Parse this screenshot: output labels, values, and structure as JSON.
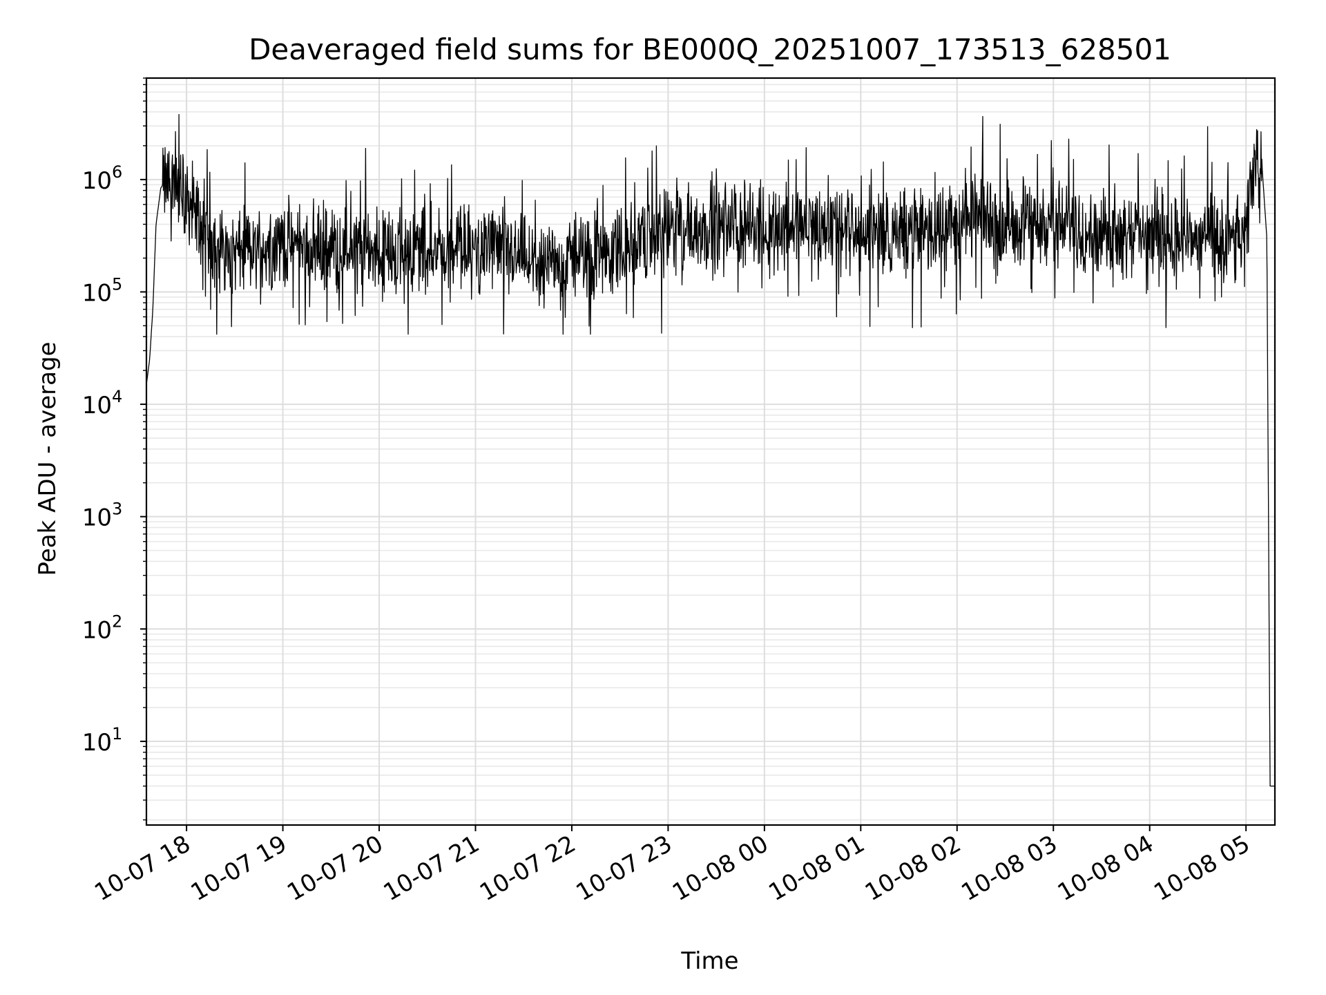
{
  "chart_data": {
    "type": "line",
    "title": "Deaveraged field sums for BE000Q_20251007_173513_628501",
    "xlabel": "Time",
    "ylabel": "Peak ADU - average",
    "y_scale": "log",
    "ylim": [
      1.8,
      8000000
    ],
    "xlim": [
      "2025-10-07 17:35",
      "2025-10-08 05:18"
    ],
    "grid": "major and minor, light gray",
    "line_color": "#000000",
    "x_ticks": [
      "10-07 18",
      "10-07 19",
      "10-07 20",
      "10-07 21",
      "10-07 22",
      "10-07 23",
      "10-08 00",
      "10-08 01",
      "10-08 02",
      "10-08 03",
      "10-08 04",
      "10-08 05"
    ],
    "y_ticks": [
      {
        "base": "10",
        "exp": "1"
      },
      {
        "base": "10",
        "exp": "2"
      },
      {
        "base": "10",
        "exp": "3"
      },
      {
        "base": "10",
        "exp": "4"
      },
      {
        "base": "10",
        "exp": "5"
      },
      {
        "base": "10",
        "exp": "6"
      }
    ],
    "series": [
      {
        "x": [
          "2025-10-07 17:35",
          "2025-10-07 17:37",
          "2025-10-07 17:39",
          "2025-10-07 17:41",
          "2025-10-07 17:44",
          "2025-10-07 17:50",
          "2025-10-07 17:55",
          "2025-10-07 18:00",
          "2025-10-07 18:03",
          "2025-10-07 18:10",
          "2025-10-07 18:20",
          "2025-10-07 18:30",
          "2025-10-07 19:00",
          "2025-10-07 19:30",
          "2025-10-07 20:00",
          "2025-10-07 20:30",
          "2025-10-07 21:00",
          "2025-10-07 21:30",
          "2025-10-07 21:45",
          "2025-10-07 22:00",
          "2025-10-07 22:30",
          "2025-10-07 23:00",
          "2025-10-07 23:30",
          "2025-10-08 00:00",
          "2025-10-08 00:30",
          "2025-10-08 01:00",
          "2025-10-08 01:30",
          "2025-10-08 02:00",
          "2025-10-08 02:30",
          "2025-10-08 03:00",
          "2025-10-08 03:30",
          "2025-10-08 04:00",
          "2025-10-08 04:30",
          "2025-10-08 05:00",
          "2025-10-08 05:05",
          "2025-10-08 05:10",
          "2025-10-08 05:13",
          "2025-10-08 05:15",
          "2025-10-08 05:18"
        ],
        "y": [
          15000,
          25000,
          70000,
          400000,
          850000,
          1000000,
          900000,
          700000,
          600000,
          350000,
          250000,
          220000,
          280000,
          250000,
          230000,
          250000,
          250000,
          200000,
          150000,
          200000,
          250000,
          350000,
          380000,
          380000,
          380000,
          350000,
          350000,
          400000,
          450000,
          400000,
          350000,
          350000,
          300000,
          300000,
          1300000,
          1300000,
          300000,
          4,
          4
        ],
        "variability": {
          "typical_band": [
            80000,
            1200000
          ],
          "min_dip": 42000,
          "max_spike": 3800000
        }
      }
    ]
  }
}
